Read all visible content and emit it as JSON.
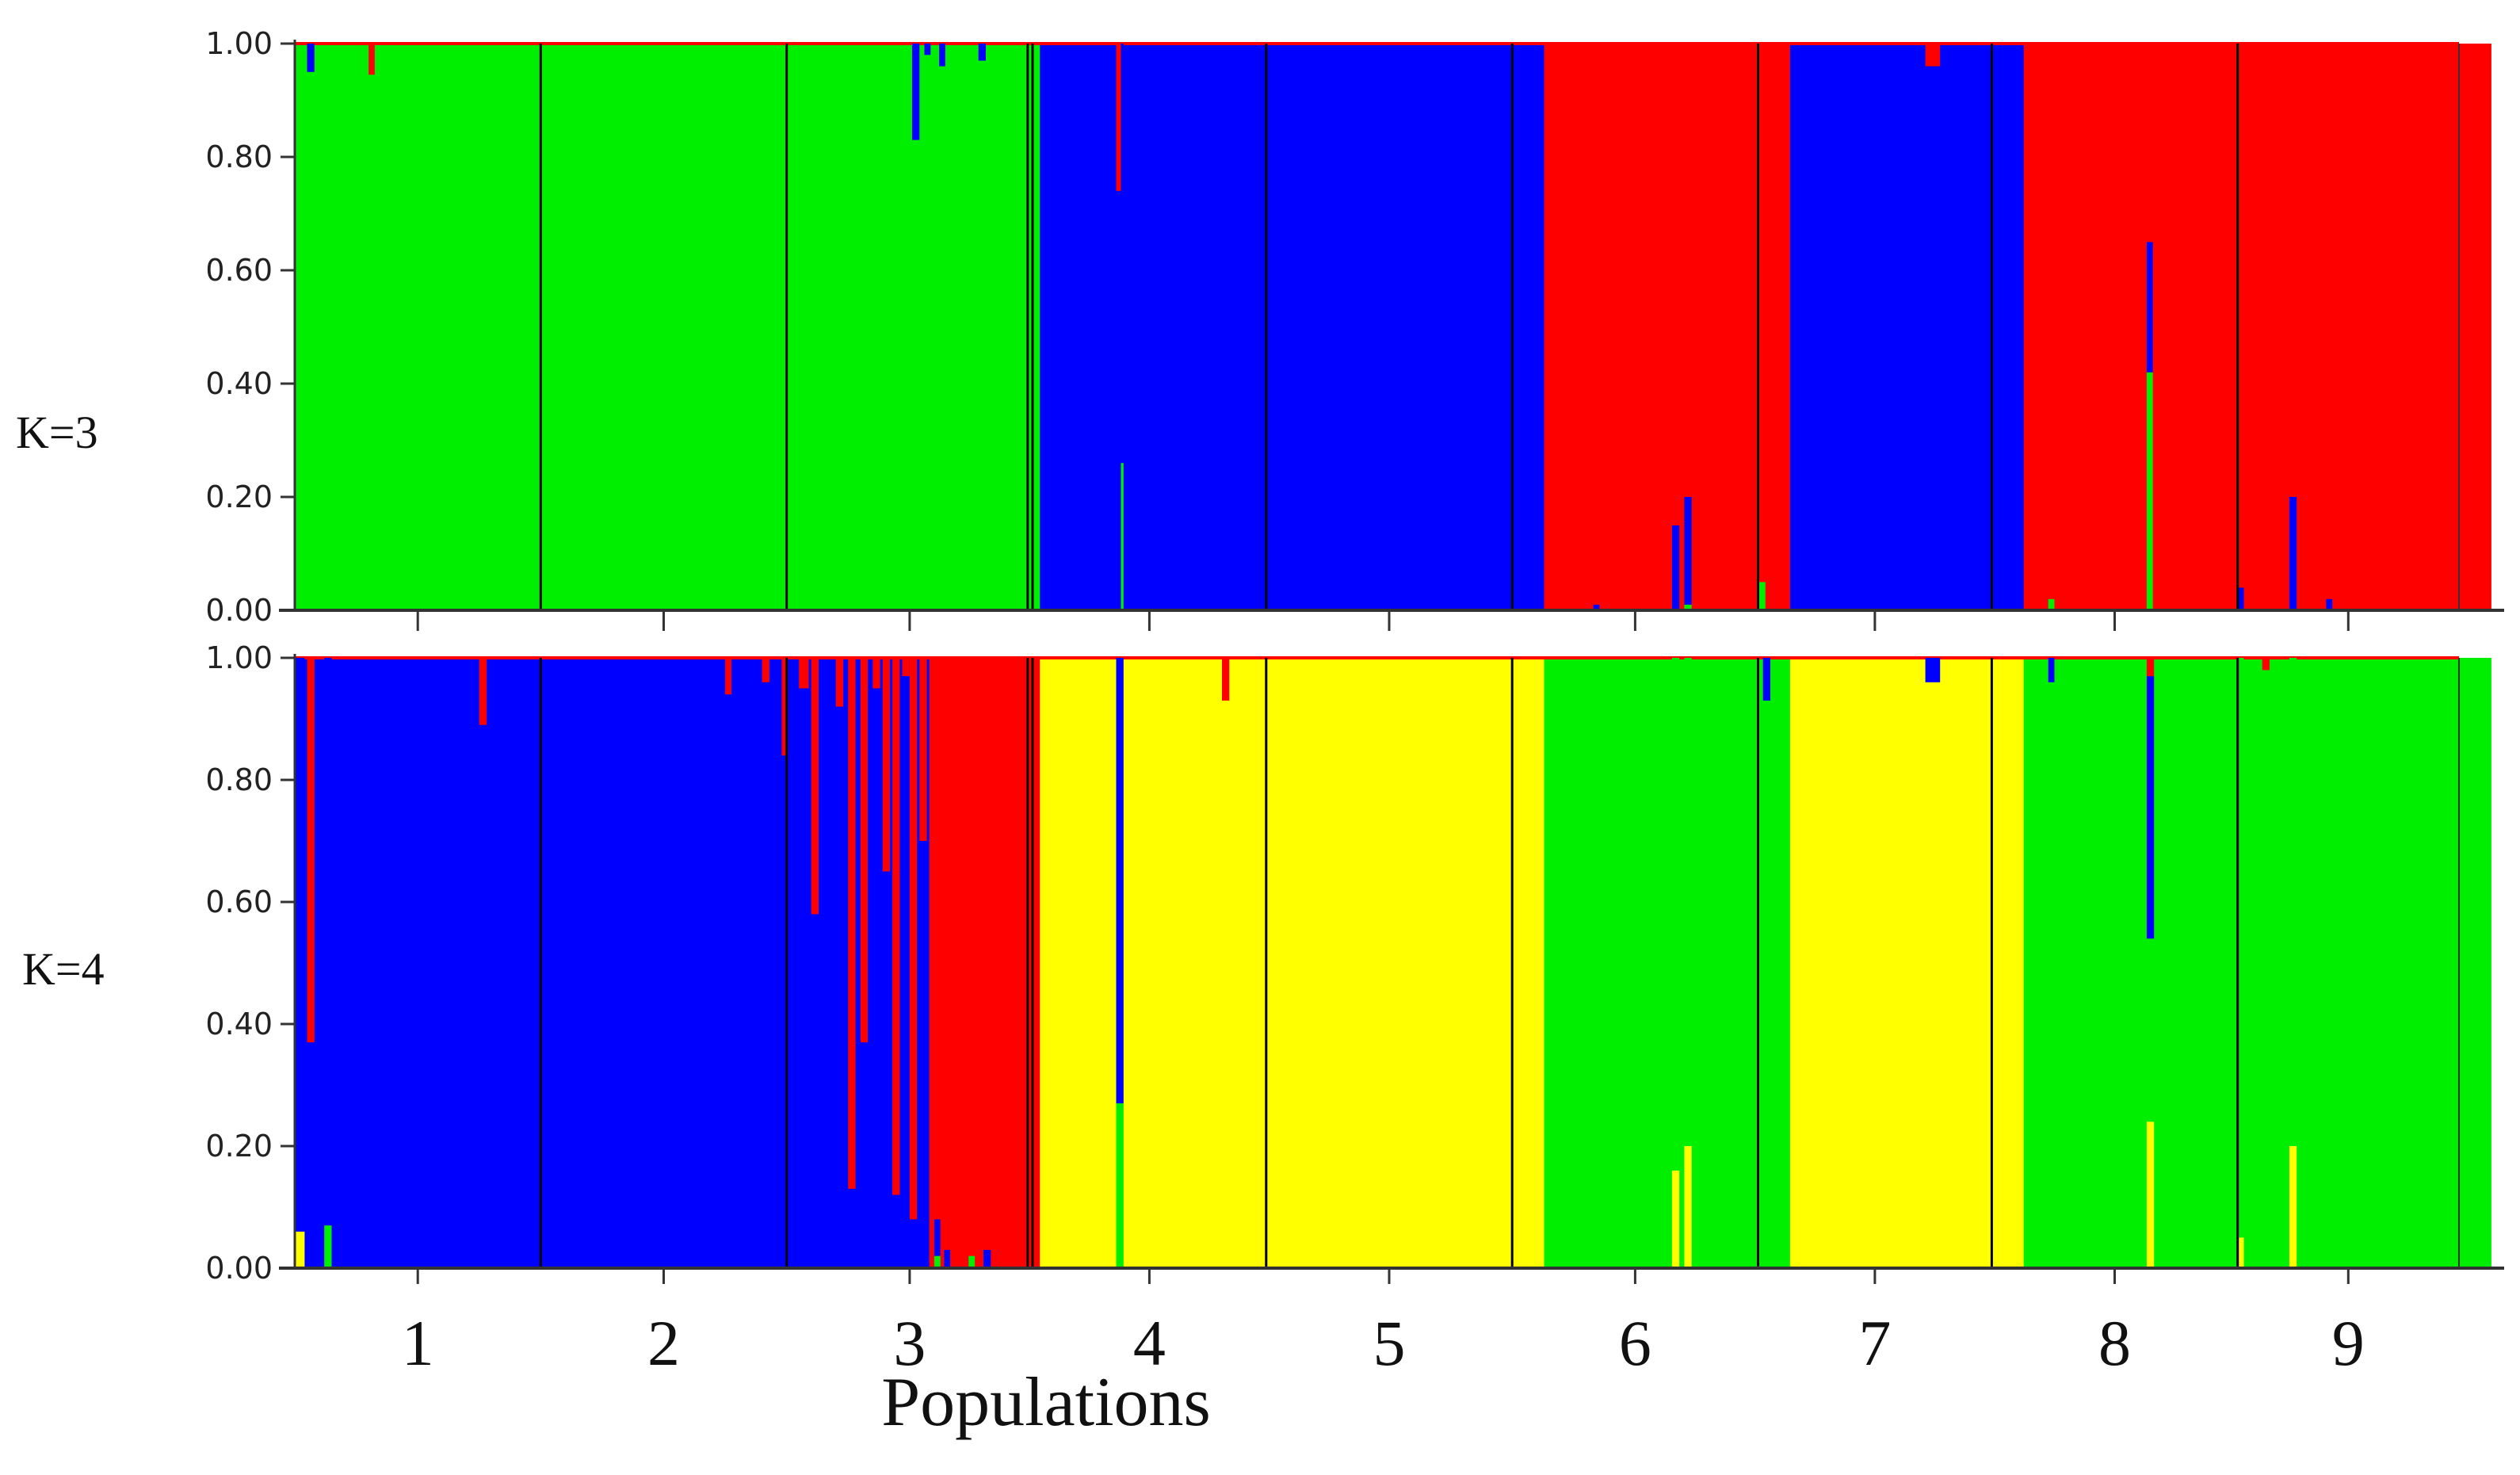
{
  "chart_data": {
    "type": "bar",
    "subtype": "stacked-admixture (STRUCTURE plot)",
    "xlabel": "Populations",
    "populations": [
      "1",
      "2",
      "3",
      "4",
      "5",
      "6",
      "7",
      "8",
      "9"
    ],
    "population_spans": [
      1,
      1,
      1,
      0.95,
      1,
      1,
      0.95,
      1,
      0.9
    ],
    "y_ticks": [
      "0.00",
      "0.20",
      "0.40",
      "0.60",
      "0.80",
      "1.00"
    ],
    "ylim": [
      0,
      1
    ],
    "colors": {
      "red": "#ff0000",
      "green": "#00ee00",
      "blue": "#0000ff",
      "yellow": "#ffff00"
    },
    "panels": [
      {
        "label": "K=3",
        "stack_order": [
          "green",
          "blue",
          "red"
        ],
        "segments": [
          {
            "population": "1",
            "from": 0,
            "to": 1,
            "base": "green"
          },
          {
            "population": "2",
            "from": 1,
            "to": 2,
            "base": "green"
          },
          {
            "population": "3",
            "from": 2,
            "to": 3.03,
            "base": "green"
          },
          {
            "population": "3",
            "from": 3.03,
            "to": 3.13,
            "base": "blue"
          },
          {
            "population": "4",
            "from": 3.13,
            "to": 4.08,
            "base": "blue"
          },
          {
            "population": "5",
            "from": 4.08,
            "to": 5.08,
            "base": "blue"
          },
          {
            "population": "6",
            "from": 5.08,
            "to": 6.08,
            "base": "red"
          },
          {
            "population": "7",
            "from": 6.08,
            "to": 7.03,
            "base": "blue"
          },
          {
            "population": "8",
            "from": 7.03,
            "to": 8.03,
            "base": "red"
          },
          {
            "population": "9",
            "from": 8.03,
            "to": 8.93,
            "base": "red"
          }
        ],
        "individual_admixture": [
          {
            "pos": 0.05,
            "width": 0.03,
            "parts": {
              "blue": 0.05,
              "green": 0.95
            }
          },
          {
            "pos": 0.3,
            "width": 0.025,
            "parts": {
              "green": 0.945,
              "red": 0.055
            }
          },
          {
            "pos": 5.28,
            "width": 0.025,
            "parts": {
              "blue": 0.01,
              "red": 0.99
            }
          },
          {
            "pos": 2.51,
            "width": 0.03,
            "parts": {
              "blue": 0.17,
              "green": 0.83
            }
          },
          {
            "pos": 2.56,
            "width": 0.025,
            "parts": {
              "blue": 0.02,
              "green": 0.98
            }
          },
          {
            "pos": 2.62,
            "width": 0.025,
            "parts": {
              "blue": 0.04,
              "green": 0.96
            }
          },
          {
            "pos": 2.78,
            "width": 0.03,
            "parts": {
              "blue": 0.03,
              "green": 0.97
            }
          },
          {
            "pos": 3.34,
            "width": 0.03,
            "parts": {
              "green": 0.26,
              "blue": 0.74
            }
          },
          {
            "pos": 3.34,
            "width": 0.015,
            "parts": {
              "blue": 0.74,
              "red": 0.26
            }
          },
          {
            "pos": 5.6,
            "width": 0.03,
            "parts": {
              "blue": 0.15,
              "red": 0.85
            }
          },
          {
            "pos": 5.65,
            "width": 0.03,
            "parts": {
              "blue": 0.19,
              "green": 0.01,
              "red": 0.8
            }
          },
          {
            "pos": 5.95,
            "width": 0.03,
            "parts": {
              "green": 0.05,
              "red": 0.95
            }
          },
          {
            "pos": 6.63,
            "width": 0.06,
            "parts": {
              "blue": 0.96,
              "red": 0.04
            }
          },
          {
            "pos": 7.13,
            "width": 0.025,
            "parts": {
              "green": 0.02,
              "red": 0.98
            }
          },
          {
            "pos": 7.53,
            "width": 0.025,
            "parts": {
              "blue": 0.23,
              "green": 0.42,
              "red": 0.35
            }
          },
          {
            "pos": 7.9,
            "width": 0.025,
            "parts": {
              "blue": 0.04,
              "red": 0.96
            }
          },
          {
            "pos": 8.11,
            "width": 0.03,
            "parts": {
              "blue": 0.2,
              "red": 0.8
            }
          },
          {
            "pos": 8.26,
            "width": 0.025,
            "parts": {
              "blue": 0.02,
              "red": 0.98
            }
          }
        ]
      },
      {
        "label": "K=4",
        "stack_order": [
          "yellow",
          "green",
          "blue",
          "red"
        ],
        "segments": [
          {
            "population": "1",
            "from": 0,
            "to": 1,
            "base": "blue"
          },
          {
            "population": "2",
            "from": 1,
            "to": 2,
            "base": "blue"
          },
          {
            "population": "3",
            "from": 2,
            "to": 2.58,
            "base": "blue"
          },
          {
            "population": "3",
            "from": 2.58,
            "to": 3.03,
            "base": "red"
          },
          {
            "population": "3",
            "from": 3.03,
            "to": 3.13,
            "base": "yellow"
          },
          {
            "population": "4",
            "from": 3.13,
            "to": 4.08,
            "base": "yellow"
          },
          {
            "population": "5",
            "from": 4.08,
            "to": 5.08,
            "base": "yellow"
          },
          {
            "population": "6",
            "from": 5.08,
            "to": 6.08,
            "base": "green"
          },
          {
            "population": "7",
            "from": 6.08,
            "to": 7.03,
            "base": "yellow"
          },
          {
            "population": "8",
            "from": 7.03,
            "to": 8.03,
            "base": "green"
          },
          {
            "population": "9",
            "from": 8.03,
            "to": 8.93,
            "base": "green"
          }
        ],
        "individual_admixture": [
          {
            "pos": 0.0,
            "width": 0.04,
            "parts": {
              "yellow": 0.06,
              "blue": 0.94
            }
          },
          {
            "pos": 0.05,
            "width": 0.03,
            "parts": {
              "blue": 0.37,
              "red": 0.63
            }
          },
          {
            "pos": 0.12,
            "width": 0.03,
            "parts": {
              "blue": 0.93,
              "green": 0.07
            }
          },
          {
            "pos": 0.75,
            "width": 0.03,
            "parts": {
              "blue": 0.89,
              "red": 0.11
            }
          },
          {
            "pos": 1.75,
            "width": 0.025,
            "parts": {
              "blue": 0.94,
              "red": 0.06
            }
          },
          {
            "pos": 1.9,
            "width": 0.03,
            "parts": {
              "blue": 0.96,
              "red": 0.04
            }
          },
          {
            "pos": 1.98,
            "width": 0.025,
            "parts": {
              "blue": 0.84,
              "red": 0.16
            }
          },
          {
            "pos": 2.05,
            "width": 0.04,
            "parts": {
              "blue": 0.95,
              "red": 0.05
            }
          },
          {
            "pos": 2.1,
            "width": 0.03,
            "parts": {
              "blue": 0.58,
              "red": 0.42
            }
          },
          {
            "pos": 2.2,
            "width": 0.03,
            "parts": {
              "blue": 0.92,
              "red": 0.08
            }
          },
          {
            "pos": 2.25,
            "width": 0.03,
            "parts": {
              "blue": 0.13,
              "red": 0.87
            }
          },
          {
            "pos": 2.3,
            "width": 0.03,
            "parts": {
              "blue": 0.37,
              "red": 0.63
            }
          },
          {
            "pos": 2.35,
            "width": 0.03,
            "parts": {
              "blue": 0.95,
              "red": 0.05
            }
          },
          {
            "pos": 2.39,
            "width": 0.03,
            "parts": {
              "blue": 0.65,
              "red": 0.35
            }
          },
          {
            "pos": 2.43,
            "width": 0.03,
            "parts": {
              "blue": 0.12,
              "red": 0.88
            }
          },
          {
            "pos": 2.47,
            "width": 0.03,
            "parts": {
              "blue": 0.97,
              "red": 0.03
            }
          },
          {
            "pos": 2.5,
            "width": 0.03,
            "parts": {
              "blue": 0.08,
              "red": 0.92
            }
          },
          {
            "pos": 2.54,
            "width": 0.03,
            "parts": {
              "blue": 0.7,
              "red": 0.3
            }
          },
          {
            "pos": 2.6,
            "width": 0.025,
            "parts": {
              "blue": 0.06,
              "green": 0.02,
              "red": 0.92
            }
          },
          {
            "pos": 2.64,
            "width": 0.025,
            "parts": {
              "blue": 0.03,
              "red": 0.97
            }
          },
          {
            "pos": 2.74,
            "width": 0.025,
            "parts": {
              "green": 0.02,
              "red": 0.98
            }
          },
          {
            "pos": 2.8,
            "width": 0.03,
            "parts": {
              "blue": 0.03,
              "red": 0.97
            }
          },
          {
            "pos": 3.34,
            "width": 0.03,
            "parts": {
              "blue": 0.73,
              "green": 0.27
            }
          },
          {
            "pos": 3.77,
            "width": 0.03,
            "parts": {
              "yellow": 0.93,
              "red": 0.07
            }
          },
          {
            "pos": 5.6,
            "width": 0.03,
            "parts": {
              "yellow": 0.16,
              "green": 0.84
            }
          },
          {
            "pos": 5.65,
            "width": 0.03,
            "parts": {
              "yellow": 0.2,
              "green": 0.8
            }
          },
          {
            "pos": 5.97,
            "width": 0.03,
            "parts": {
              "blue": 0.07,
              "green": 0.93
            }
          },
          {
            "pos": 6.63,
            "width": 0.06,
            "parts": {
              "blue": 0.04,
              "yellow": 0.96
            }
          },
          {
            "pos": 7.13,
            "width": 0.025,
            "parts": {
              "blue": 0.04,
              "green": 0.96
            }
          },
          {
            "pos": 7.53,
            "width": 0.03,
            "parts": {
              "yellow": 0.24,
              "blue": 0.43,
              "green": 0.3,
              "red": 0.03
            }
          },
          {
            "pos": 7.9,
            "width": 0.025,
            "parts": {
              "yellow": 0.05,
              "green": 0.95
            }
          },
          {
            "pos": 8.11,
            "width": 0.03,
            "parts": {
              "yellow": 0.2,
              "green": 0.8
            }
          },
          {
            "pos": 8.0,
            "width": 0.03,
            "parts": {
              "green": 0.98,
              "red": 0.02
            }
          }
        ]
      }
    ]
  }
}
